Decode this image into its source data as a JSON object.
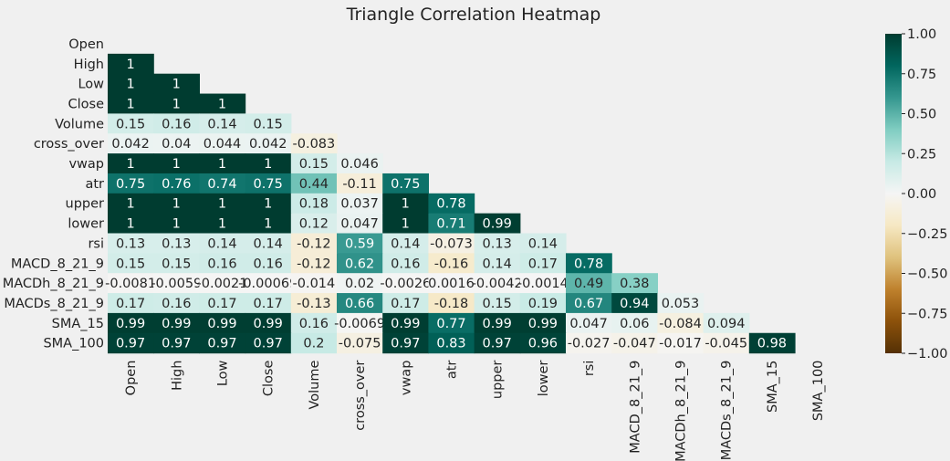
{
  "chart_data": {
    "type": "heatmap",
    "title": "Triangle Correlation Heatmap",
    "labels": [
      "Open",
      "High",
      "Low",
      "Close",
      "Volume",
      "cross_over",
      "vwap",
      "atr",
      "upper",
      "lower",
      "rsi",
      "MACD_8_21_9",
      "MACDh_8_21_9",
      "MACDs_8_21_9",
      "SMA_15",
      "SMA_100"
    ],
    "values": [
      [],
      [
        "1"
      ],
      [
        "1",
        "1"
      ],
      [
        "1",
        "1",
        "1"
      ],
      [
        "0.15",
        "0.16",
        "0.14",
        "0.15"
      ],
      [
        "0.042",
        "0.04",
        "0.044",
        "0.042",
        "-0.083"
      ],
      [
        "1",
        "1",
        "1",
        "1",
        "0.15",
        "0.046"
      ],
      [
        "0.75",
        "0.76",
        "0.74",
        "0.75",
        "0.44",
        "-0.11",
        "0.75"
      ],
      [
        "1",
        "1",
        "1",
        "1",
        "0.18",
        "0.037",
        "1",
        "0.78"
      ],
      [
        "1",
        "1",
        "1",
        "1",
        "0.12",
        "0.047",
        "1",
        "0.71",
        "0.99"
      ],
      [
        "0.13",
        "0.13",
        "0.14",
        "0.14",
        "-0.12",
        "0.59",
        "0.14",
        "-0.073",
        "0.13",
        "0.14"
      ],
      [
        "0.15",
        "0.15",
        "0.16",
        "0.16",
        "-0.12",
        "0.62",
        "0.16",
        "-0.16",
        "0.14",
        "0.17",
        "0.78"
      ],
      [
        "-0.0081",
        "-0.0059",
        "-0.0021",
        "-0.00069",
        "-0.014",
        "0.02",
        "-0.0026",
        "0.0016",
        "-0.0042",
        "-0.0014",
        "0.49",
        "0.38"
      ],
      [
        "0.17",
        "0.16",
        "0.17",
        "0.17",
        "-0.13",
        "0.66",
        "0.17",
        "-0.18",
        "0.15",
        "0.19",
        "0.67",
        "0.94",
        "0.053"
      ],
      [
        "0.99",
        "0.99",
        "0.99",
        "0.99",
        "0.16",
        "-0.0069",
        "0.99",
        "0.77",
        "0.99",
        "0.99",
        "0.047",
        "0.06",
        "-0.084",
        "0.094"
      ],
      [
        "0.97",
        "0.97",
        "0.97",
        "0.97",
        "0.2",
        "-0.075",
        "0.97",
        "0.83",
        "0.97",
        "0.96",
        "-0.027",
        "-0.047",
        "-0.017",
        "-0.045",
        "0.98"
      ]
    ],
    "vmin": -1,
    "vmax": 1,
    "colormap": "BrBG",
    "colorbar_ticks": [
      "1.00",
      "0.75",
      "0.50",
      "0.25",
      "0.00",
      "−0.25",
      "−0.50",
      "−0.75",
      "−1.00"
    ],
    "grid": false
  }
}
